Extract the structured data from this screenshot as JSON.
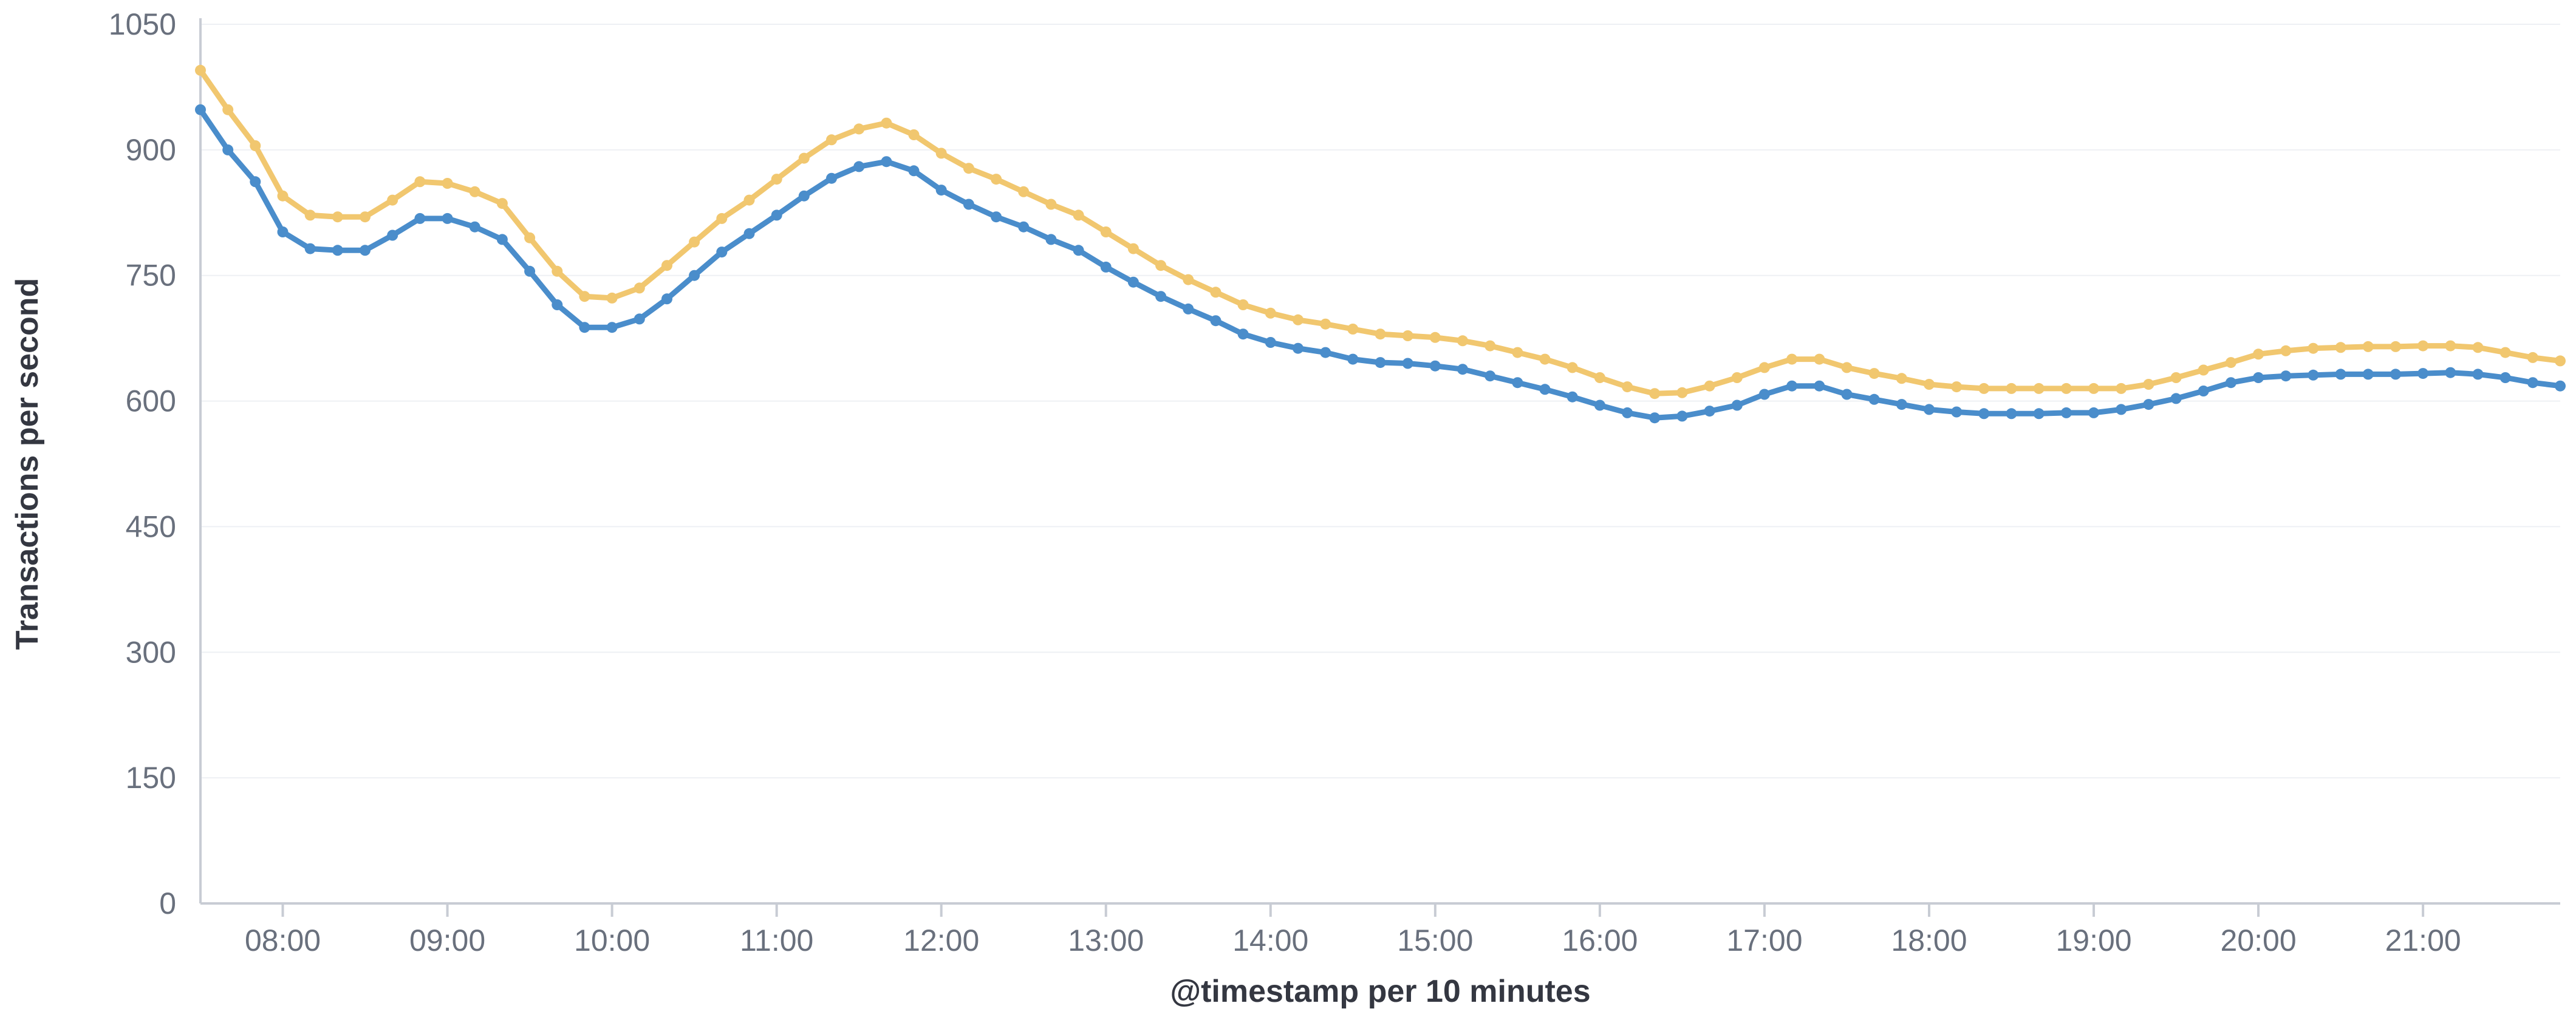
{
  "chart_data": {
    "type": "line",
    "title": "",
    "xlabel": "@timestamp per 10 minutes",
    "ylabel": "Transactions per second",
    "ylim": [
      0,
      1050
    ],
    "yticks": [
      "0",
      "150",
      "300",
      "450",
      "600",
      "750",
      "900",
      "1050"
    ],
    "x_domain": [
      "07:30",
      "21:50"
    ],
    "xtick_labels": [
      "08:00",
      "09:00",
      "10:00",
      "11:00",
      "12:00",
      "13:00",
      "14:00",
      "15:00",
      "16:00",
      "17:00",
      "18:00",
      "19:00",
      "20:00",
      "21:00"
    ],
    "grid": true,
    "legend": "none",
    "x": [
      "07:30",
      "07:40",
      "07:50",
      "08:00",
      "08:10",
      "08:20",
      "08:30",
      "08:40",
      "08:50",
      "09:00",
      "09:10",
      "09:20",
      "09:30",
      "09:40",
      "09:50",
      "10:00",
      "10:10",
      "10:20",
      "10:30",
      "10:40",
      "10:50",
      "11:00",
      "11:10",
      "11:20",
      "11:30",
      "11:40",
      "11:50",
      "12:00",
      "12:10",
      "12:20",
      "12:30",
      "12:40",
      "12:50",
      "13:00",
      "13:10",
      "13:20",
      "13:30",
      "13:40",
      "13:50",
      "14:00",
      "14:10",
      "14:20",
      "14:30",
      "14:40",
      "14:50",
      "15:00",
      "15:10",
      "15:20",
      "15:30",
      "15:40",
      "15:50",
      "16:00",
      "16:10",
      "16:20",
      "16:30",
      "16:40",
      "16:50",
      "17:00",
      "17:10",
      "17:20",
      "17:30",
      "17:40",
      "17:50",
      "18:00",
      "18:10",
      "18:20",
      "18:30",
      "18:40",
      "18:50",
      "19:00",
      "19:10",
      "19:20",
      "19:30",
      "19:40",
      "19:50",
      "20:00",
      "20:10",
      "20:20",
      "20:30",
      "20:40",
      "20:50",
      "21:00",
      "21:10",
      "21:20",
      "21:30",
      "21:40",
      "21:50"
    ],
    "series": [
      {
        "color": "#f1c76f",
        "values": [
          995,
          948,
          905,
          845,
          822,
          820,
          820,
          840,
          862,
          860,
          850,
          836,
          795,
          755,
          725,
          723,
          735,
          762,
          790,
          818,
          840,
          865,
          890,
          912,
          925,
          932,
          918,
          896,
          878,
          865,
          850,
          835,
          822,
          802,
          782,
          762,
          745,
          730,
          715,
          705,
          697,
          692,
          686,
          680,
          678,
          676,
          672,
          666,
          658,
          650,
          640,
          628,
          617,
          609,
          610,
          618,
          628,
          640,
          650,
          650,
          640,
          633,
          627,
          620,
          617,
          615,
          615,
          615,
          615,
          615,
          615,
          620,
          628,
          637,
          646,
          656,
          660,
          663,
          664,
          665,
          665,
          666,
          666,
          664,
          658,
          652,
          648
        ]
      },
      {
        "color": "#4a8dcb",
        "values": [
          948,
          900,
          862,
          802,
          782,
          780,
          780,
          798,
          818,
          818,
          808,
          793,
          755,
          715,
          688,
          688,
          698,
          722,
          750,
          778,
          800,
          822,
          845,
          866,
          880,
          886,
          875,
          852,
          835,
          820,
          808,
          793,
          780,
          760,
          742,
          725,
          710,
          696,
          680,
          670,
          663,
          658,
          650,
          646,
          645,
          642,
          638,
          630,
          622,
          614,
          605,
          595,
          586,
          580,
          582,
          588,
          595,
          608,
          618,
          618,
          608,
          602,
          596,
          590,
          587,
          585,
          585,
          585,
          586,
          586,
          590,
          596,
          603,
          612,
          622,
          628,
          630,
          631,
          632,
          632,
          632,
          633,
          634,
          632,
          628,
          622,
          618
        ]
      }
    ]
  }
}
